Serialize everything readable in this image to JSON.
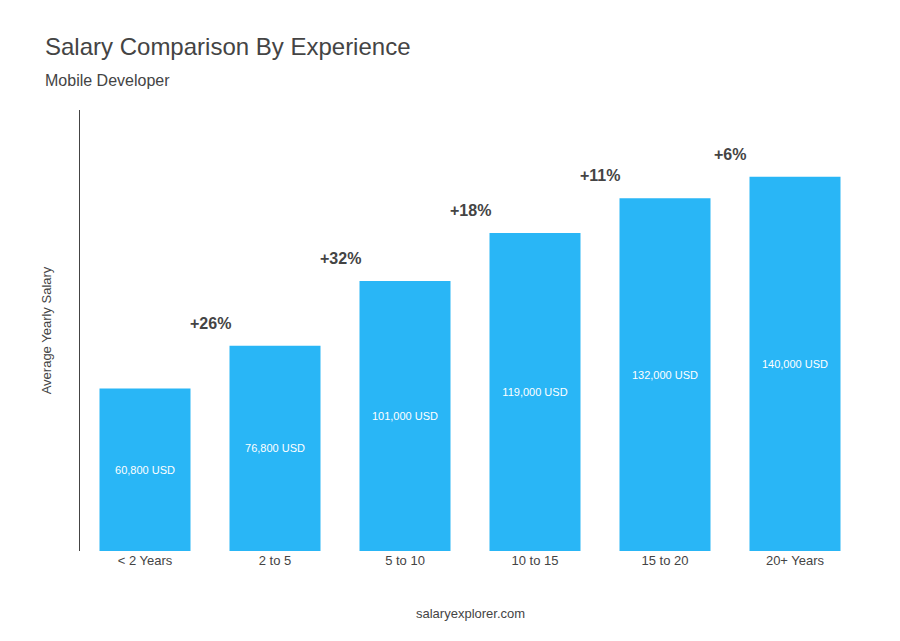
{
  "chart_data": {
    "type": "bar",
    "title": "Salary Comparison By Experience",
    "subtitle": "Mobile Developer",
    "ylabel": "Average Yearly Salary",
    "footer": "salaryexplorer.com",
    "categories": [
      "< 2 Years",
      "2 to 5",
      "5 to 10",
      "10 to 15",
      "15 to 20",
      "20+ Years"
    ],
    "values": [
      60800,
      76800,
      101000,
      119000,
      132000,
      140000
    ],
    "value_labels": [
      "60,800 USD",
      "76,800 USD",
      "101,000 USD",
      "119,000 USD",
      "132,000 USD",
      "140,000 USD"
    ],
    "data_labels": true,
    "annotations": [
      "+26%",
      "+32%",
      "+18%",
      "+11%",
      "+6%"
    ],
    "color": "#29b6f6",
    "ylim": [
      0,
      165000
    ],
    "grid": false,
    "tick_labels": "x"
  }
}
